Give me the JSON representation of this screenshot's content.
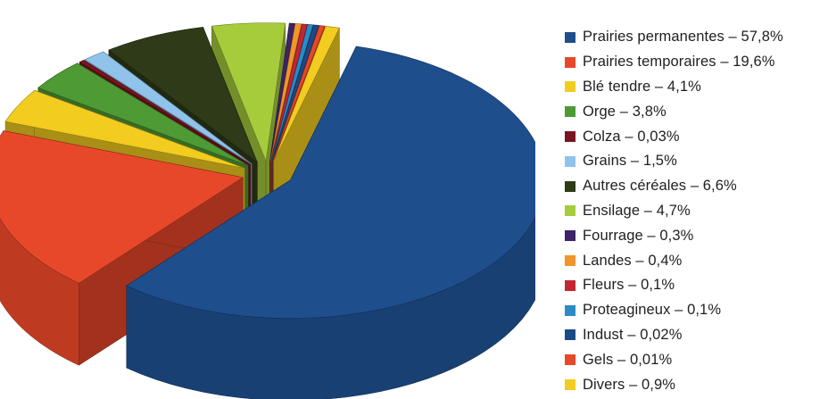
{
  "chart_data": {
    "type": "pie",
    "title": "",
    "legend_position": "right",
    "slices": [
      {
        "label": "Prairies permanentes – 57,8%",
        "value": 57.8,
        "color": "#1f4e8c"
      },
      {
        "label": "Prairies temporaires – 19,6%",
        "value": 19.6,
        "color": "#e8482a"
      },
      {
        "label": "Blé tendre – 4,1%",
        "value": 4.1,
        "color": "#f2cc1f"
      },
      {
        "label": "Orge – 3,8%",
        "value": 3.8,
        "color": "#4e9a34"
      },
      {
        "label": "Colza – 0,03%",
        "value": 0.03,
        "color": "#7a1520"
      },
      {
        "label": "Grains – 1,5%",
        "value": 1.5,
        "color": "#8fc3ea"
      },
      {
        "label": "Autres céréales – 6,6%",
        "value": 6.6,
        "color": "#2f3a18"
      },
      {
        "label": "Ensilage – 4,7%",
        "value": 4.7,
        "color": "#a6cc3c"
      },
      {
        "label": "Fourrage – 0,3%",
        "value": 0.3,
        "color": "#3c2466"
      },
      {
        "label": "Landes – 0,4%",
        "value": 0.4,
        "color": "#f0962a"
      },
      {
        "label": "Fleurs – 0,1%",
        "value": 0.1,
        "color": "#c42630"
      },
      {
        "label": "Proteagineux – 0,1%",
        "value": 0.1,
        "color": "#2a8bc8"
      },
      {
        "label": "Indust – 0,02%",
        "value": 0.02,
        "color": "#1c4a86"
      },
      {
        "label": "Gels – 0,01%",
        "value": 0.01,
        "color": "#e8482a"
      },
      {
        "label": "Divers – 0,9%",
        "value": 0.9,
        "color": "#f2cc1f"
      }
    ]
  }
}
